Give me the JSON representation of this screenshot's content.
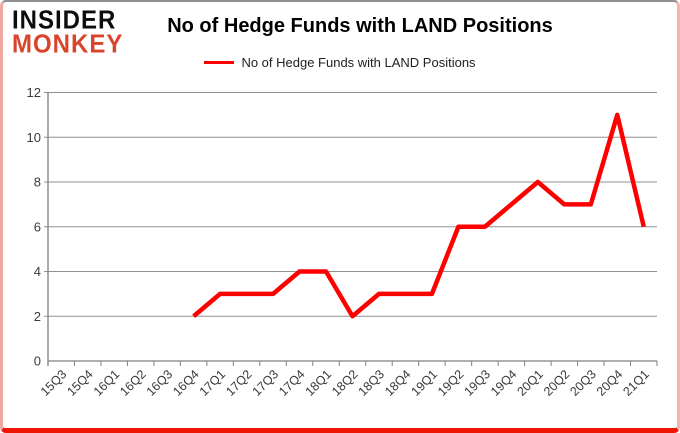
{
  "logo": {
    "line1": "INSIDER",
    "line2": "MONKEY",
    "line2_color": "#d9452c"
  },
  "title": "No of Hedge Funds with LAND Positions",
  "legend": {
    "label": "No of Hedge Funds with LAND Positions",
    "line_color": "#fe0000"
  },
  "chart_data": {
    "type": "line",
    "title": "No of Hedge Funds with LAND Positions",
    "categories": [
      "15Q3",
      "15Q4",
      "16Q1",
      "16Q2",
      "16Q3",
      "16Q4",
      "17Q1",
      "17Q2",
      "17Q3",
      "17Q4",
      "18Q1",
      "18Q2",
      "18Q3",
      "18Q4",
      "19Q1",
      "19Q2",
      "19Q3",
      "19Q4",
      "20Q1",
      "20Q2",
      "20Q3",
      "20Q4",
      "21Q1"
    ],
    "series": [
      {
        "name": "No of Hedge Funds with LAND Positions",
        "color": "#fe0000",
        "values": [
          null,
          null,
          null,
          null,
          null,
          2,
          3,
          3,
          3,
          4,
          4,
          2,
          3,
          3,
          3,
          6,
          6,
          7,
          8,
          7,
          7,
          11,
          6
        ]
      }
    ],
    "xlabel": "",
    "ylabel": "",
    "ylim": [
      0,
      12
    ],
    "yticks": [
      0,
      2,
      4,
      6,
      8,
      10,
      12
    ],
    "grid": true,
    "legend_position": "top-center",
    "colors": {
      "gridline": "#909090",
      "axis": "#808080",
      "tick_label": "#3a3a3a",
      "background": "#ffffff"
    }
  }
}
